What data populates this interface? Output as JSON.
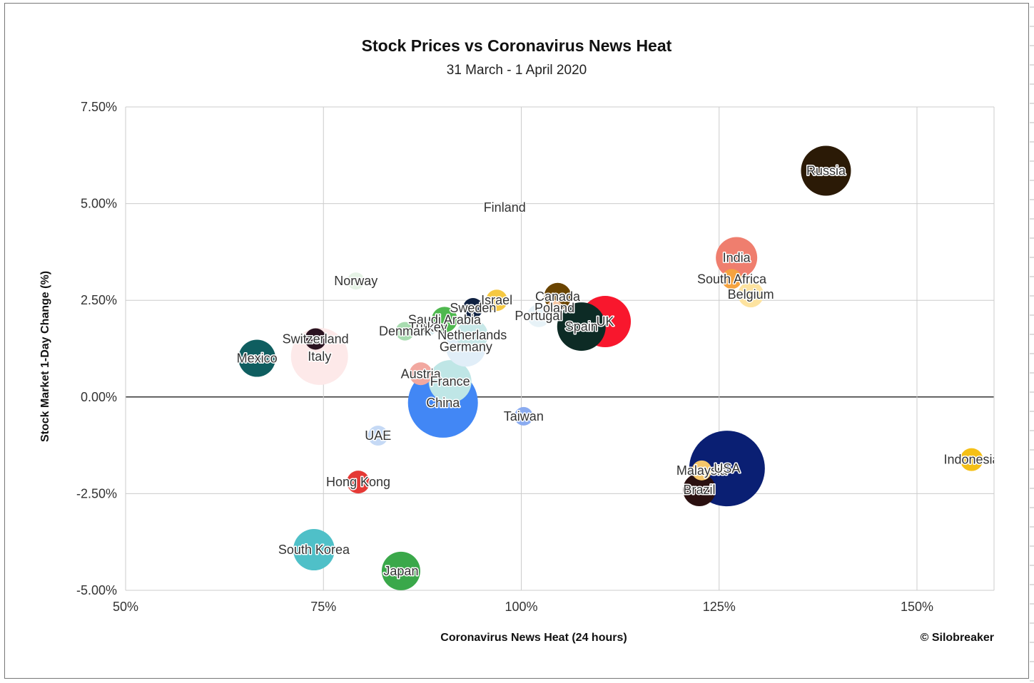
{
  "title": "Stock Prices vs Coronavirus News Heat",
  "subtitle": "31 March - 1 April 2020",
  "credit": "© Silobreaker",
  "chart_data": {
    "type": "scatter",
    "variant": "bubble",
    "xlabel": "Coronavirus News Heat (24 hours)",
    "ylabel": "Stock Market 1-Day Change (%)",
    "xlim": [
      50,
      160
    ],
    "ylim": [
      -5,
      7.5
    ],
    "x_ticks": [
      50,
      75,
      100,
      125,
      150
    ],
    "x_tick_labels": [
      "50%",
      "75%",
      "100%",
      "125%",
      "150%"
    ],
    "y_ticks": [
      7.5,
      5,
      2.5,
      0,
      -2.5,
      -5
    ],
    "y_tick_labels": [
      "7.50%",
      "5.00%",
      "2.50%",
      "0.00%",
      "-2.50%",
      "-5.00%"
    ],
    "grid": true,
    "legend": "none",
    "points": [
      {
        "label": "Russia",
        "x": 138.5,
        "y": 5.85,
        "size": 35,
        "color": "#2b1a06"
      },
      {
        "label": "Finland",
        "x": 97.9,
        "y": 4.9,
        "size": 3,
        "color": "#f2c9a0"
      },
      {
        "label": "India",
        "x": 127.2,
        "y": 3.6,
        "size": 29,
        "color": "#ef7e6e"
      },
      {
        "label": "South Africa",
        "x": 126.6,
        "y": 3.05,
        "size": 14,
        "color": "#f5a340"
      },
      {
        "label": "Belgium",
        "x": 129.0,
        "y": 2.65,
        "size": 18,
        "color": "#fde3a0"
      },
      {
        "label": "Norway",
        "x": 79.1,
        "y": 3.0,
        "size": 12,
        "color": "#e6f3e6"
      },
      {
        "label": "Israel",
        "x": 96.9,
        "y": 2.5,
        "size": 15,
        "color": "#f5c842"
      },
      {
        "label": "Canada",
        "x": 104.6,
        "y": 2.6,
        "size": 19,
        "color": "#6a4400"
      },
      {
        "label": "Poland",
        "x": 104.2,
        "y": 2.3,
        "size": 11,
        "color": "#f7c7a3"
      },
      {
        "label": "Sweden",
        "x": 93.9,
        "y": 2.3,
        "size": 14,
        "color": "#0f2142"
      },
      {
        "label": "Portugal",
        "x": 102.2,
        "y": 2.1,
        "size": 16,
        "color": "#e7f2f7"
      },
      {
        "label": "Saudi Arabia",
        "x": 90.3,
        "y": 2.0,
        "size": 18,
        "color": "#4fb84f"
      },
      {
        "label": "Turkey",
        "x": 88.2,
        "y": 1.8,
        "size": 12,
        "color": "#d8edf2"
      },
      {
        "label": "Spain",
        "x": 107.6,
        "y": 1.82,
        "size": 34,
        "color": "#0d2b25"
      },
      {
        "label": "UK",
        "x": 110.6,
        "y": 1.95,
        "size": 36,
        "color": "#f8172d"
      },
      {
        "label": "Denmark",
        "x": 85.3,
        "y": 1.7,
        "size": 13,
        "color": "#a8dcb0"
      },
      {
        "label": "Netherlands",
        "x": 93.8,
        "y": 1.6,
        "size": 22,
        "color": "#c8e8e8"
      },
      {
        "label": "Germany",
        "x": 93.0,
        "y": 1.3,
        "size": 28,
        "color": "#e1eef8"
      },
      {
        "label": "Switzerland",
        "x": 74.0,
        "y": 1.5,
        "size": 15,
        "color": "#2a1220"
      },
      {
        "label": "Italy",
        "x": 74.5,
        "y": 1.05,
        "size": 40,
        "color": "#fde9e9"
      },
      {
        "label": "Mexico",
        "x": 66.6,
        "y": 1.0,
        "size": 26,
        "color": "#0f5e60"
      },
      {
        "label": "Austria",
        "x": 87.3,
        "y": 0.6,
        "size": 16,
        "color": "#f2a8a0"
      },
      {
        "label": "France",
        "x": 91.0,
        "y": 0.4,
        "size": 30,
        "color": "#bfe6e6"
      },
      {
        "label": "China",
        "x": 90.1,
        "y": -0.15,
        "size": 49,
        "color": "#4287f5"
      },
      {
        "label": "Taiwan",
        "x": 100.3,
        "y": -0.5,
        "size": 13,
        "color": "#8aabf0"
      },
      {
        "label": "UAE",
        "x": 81.9,
        "y": -1.0,
        "size": 14,
        "color": "#c5d9f5"
      },
      {
        "label": "Hong Kong",
        "x": 79.4,
        "y": -2.2,
        "size": 16,
        "color": "#e53935"
      },
      {
        "label": "South Korea",
        "x": 73.8,
        "y": -3.95,
        "size": 29,
        "color": "#4fc0c8"
      },
      {
        "label": "Japan",
        "x": 84.8,
        "y": -4.5,
        "size": 27,
        "color": "#3aa84a"
      },
      {
        "label": "Malaysia",
        "x": 122.8,
        "y": -1.9,
        "size": 14,
        "color": "#f5c66a"
      },
      {
        "label": "Brazil",
        "x": 122.5,
        "y": -2.4,
        "size": 23,
        "color": "#2a1010"
      },
      {
        "label": "USA",
        "x": 126.0,
        "y": -1.85,
        "size": 53,
        "color": "#0a1f73"
      },
      {
        "label": "Indonesia",
        "x": 156.9,
        "y": -1.62,
        "size": 16,
        "color": "#f5c016"
      }
    ]
  }
}
